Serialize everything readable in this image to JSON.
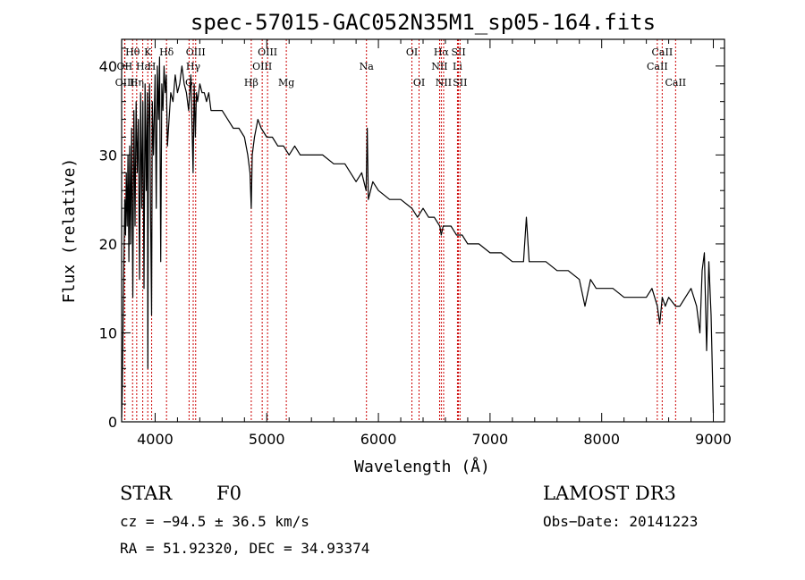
{
  "chart_data": {
    "type": "line",
    "title": "spec-57015-GAC052N35M1_sp05-164.fits",
    "xlabel": "Wavelength (Å)",
    "ylabel": "Flux (relative)",
    "xlim": [
      3700,
      9100
    ],
    "ylim": [
      0,
      43
    ],
    "xticks": [
      4000,
      5000,
      6000,
      7000,
      8000,
      9000
    ],
    "yticks": [
      0,
      10,
      20,
      30,
      40
    ],
    "series": [
      {
        "name": "spectrum",
        "x": [
          3700,
          3705,
          3712,
          3720,
          3728,
          3735,
          3742,
          3750,
          3757,
          3765,
          3772,
          3780,
          3790,
          3800,
          3810,
          3820,
          3830,
          3840,
          3850,
          3860,
          3870,
          3880,
          3890,
          3900,
          3910,
          3920,
          3930,
          3935,
          3940,
          3950,
          3960,
          3968,
          3975,
          3985,
          4000,
          4010,
          4020,
          4030,
          4040,
          4050,
          4060,
          4070,
          4080,
          4090,
          4100,
          4110,
          4120,
          4140,
          4160,
          4180,
          4200,
          4220,
          4240,
          4260,
          4280,
          4300,
          4320,
          4340,
          4350,
          4360,
          4370,
          4380,
          4400,
          4420,
          4440,
          4460,
          4480,
          4500,
          4550,
          4600,
          4650,
          4700,
          4750,
          4800,
          4830,
          4850,
          4861,
          4870,
          4890,
          4920,
          4950,
          5000,
          5050,
          5100,
          5150,
          5200,
          5250,
          5300,
          5400,
          5500,
          5600,
          5700,
          5800,
          5850,
          5890,
          5900,
          5910,
          5950,
          6000,
          6100,
          6200,
          6300,
          6350,
          6400,
          6450,
          6500,
          6550,
          6563,
          6580,
          6600,
          6650,
          6700,
          6750,
          6800,
          6900,
          7000,
          7100,
          7200,
          7300,
          7325,
          7350,
          7400,
          7500,
          7600,
          7700,
          7800,
          7850,
          7900,
          7950,
          8000,
          8100,
          8200,
          8300,
          8400,
          8450,
          8498,
          8520,
          8542,
          8570,
          8600,
          8662,
          8700,
          8750,
          8800,
          8850,
          8880,
          8900,
          8920,
          8940,
          8960,
          8980,
          9000
        ],
        "values": [
          0.5,
          3,
          10,
          18,
          25,
          21,
          28,
          22,
          30,
          18,
          31,
          20,
          33,
          14,
          35,
          22,
          36,
          28,
          34,
          16,
          37,
          24,
          36,
          15,
          38,
          26,
          37,
          6,
          33,
          38,
          22,
          12,
          36,
          30,
          39,
          24,
          40,
          34,
          41,
          18,
          38,
          35,
          40,
          37,
          39,
          31,
          33,
          37,
          36,
          39,
          37,
          38,
          40,
          38,
          37,
          35,
          39,
          28,
          38,
          32,
          37,
          36,
          38,
          37,
          37,
          36,
          37,
          35,
          35,
          35,
          34,
          33,
          33,
          32,
          30,
          28,
          24,
          30,
          32,
          34,
          33,
          32,
          32,
          31,
          31,
          30,
          31,
          30,
          30,
          30,
          29,
          29,
          27,
          28,
          26,
          33,
          25,
          27,
          26,
          25,
          25,
          24,
          23,
          24,
          23,
          23,
          22,
          21,
          22,
          22,
          22,
          21,
          21,
          20,
          20,
          19,
          19,
          18,
          18,
          23,
          18,
          18,
          18,
          17,
          17,
          16,
          13,
          16,
          15,
          15,
          15,
          14,
          14,
          14,
          15,
          13,
          11,
          14,
          13,
          14,
          13,
          13,
          14,
          15,
          13,
          10,
          17,
          19,
          8,
          18,
          12,
          1
        ]
      }
    ],
    "lines": [
      {
        "label": "Hθ",
        "x": 3798,
        "row": 1
      },
      {
        "label": "OII",
        "x": 3727,
        "row": 2
      },
      {
        "label": "OIII",
        "x": 3729,
        "row": 3
      },
      {
        "label": "Hε",
        "x": 3889,
        "row": 2
      },
      {
        "label": "K",
        "x": 3934,
        "row": 1
      },
      {
        "label": "Hη",
        "x": 3835,
        "row": 3
      },
      {
        "label": "H",
        "x": 3969,
        "row": 2
      },
      {
        "label": "Hδ",
        "x": 4102,
        "row": 1
      },
      {
        "label": "OIII",
        "x": 4363,
        "row": 1
      },
      {
        "label": "Hγ",
        "x": 4341,
        "row": 2
      },
      {
        "label": "G",
        "x": 4304,
        "row": 3
      },
      {
        "label": "OIII",
        "x": 5007,
        "row": 1
      },
      {
        "label": "OIII",
        "x": 4959,
        "row": 2
      },
      {
        "label": "Hβ",
        "x": 4861,
        "row": 3
      },
      {
        "label": "Mg",
        "x": 5175,
        "row": 3
      },
      {
        "label": "Na",
        "x": 5893,
        "row": 2
      },
      {
        "label": "OI",
        "x": 6300,
        "row": 1
      },
      {
        "label": "OI",
        "x": 6364,
        "row": 3
      },
      {
        "label": "Hα",
        "x": 6563,
        "row": 1
      },
      {
        "label": "NII",
        "x": 6548,
        "row": 2
      },
      {
        "label": "NII",
        "x": 6584,
        "row": 3
      },
      {
        "label": "SII",
        "x": 6717,
        "row": 1
      },
      {
        "label": "Li",
        "x": 6708,
        "row": 2
      },
      {
        "label": "SII",
        "x": 6731,
        "row": 3
      },
      {
        "label": "CaII",
        "x": 8542,
        "row": 1
      },
      {
        "label": "CaII",
        "x": 8498,
        "row": 2
      },
      {
        "label": "CaII",
        "x": 8662,
        "row": 3
      }
    ],
    "colors": {
      "spectrum": "#000000",
      "lines": "#cc0000",
      "axes": "#000000"
    }
  },
  "info": {
    "class_label": "STAR",
    "subclass": "F0",
    "survey": "LAMOST DR3",
    "cz": "cz = −94.5 ± 36.5 km/s",
    "obs_date": "Obs−Date: 20141223",
    "coords": "RA =  51.92320, DEC =  34.93374"
  }
}
